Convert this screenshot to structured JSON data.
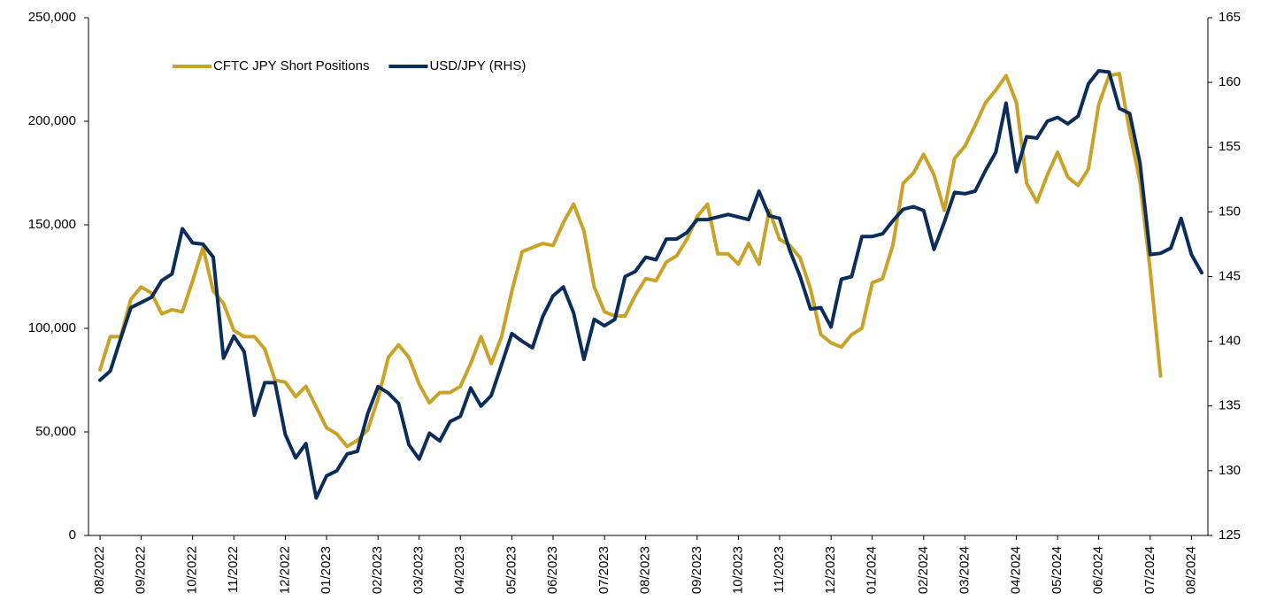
{
  "chart_data": {
    "type": "line",
    "categories": [
      "08/2022",
      null,
      null,
      null,
      "09/2022",
      null,
      null,
      null,
      null,
      "10/2022",
      null,
      null,
      null,
      "11/2022",
      null,
      null,
      null,
      null,
      "12/2022",
      null,
      null,
      null,
      "01/2023",
      null,
      null,
      null,
      null,
      "02/2023",
      null,
      null,
      null,
      "03/2023",
      null,
      null,
      null,
      "04/2023",
      null,
      null,
      null,
      null,
      "05/2023",
      null,
      null,
      null,
      "06/2023",
      null,
      null,
      null,
      null,
      "07/2023",
      null,
      null,
      null,
      "08/2023",
      null,
      null,
      null,
      null,
      "09/2023",
      null,
      null,
      null,
      "10/2023",
      null,
      null,
      null,
      "11/2023",
      null,
      null,
      null,
      null,
      "12/2023",
      null,
      null,
      null,
      "01/2024",
      null,
      null,
      null,
      null,
      "02/2024",
      null,
      null,
      null,
      "03/2024",
      null,
      null,
      null,
      null,
      "04/2024",
      null,
      null,
      null,
      "05/2024",
      null,
      null,
      null,
      "06/2024",
      null,
      null,
      null,
      null,
      "07/2024",
      null,
      null,
      null,
      "08/2024",
      null
    ],
    "series": [
      {
        "name": "CFTC JPY Short Positions",
        "color": "#C9A227",
        "axis": "y",
        "values": [
          80000,
          96000,
          96000,
          114000,
          120000,
          117000,
          107000,
          109000,
          108000,
          123000,
          139000,
          118000,
          112000,
          99000,
          96000,
          96000,
          90000,
          75000,
          74000,
          67000,
          72000,
          62000,
          52000,
          49000,
          43000,
          46000,
          51000,
          66000,
          86000,
          92000,
          86000,
          73000,
          64000,
          69000,
          69000,
          72000,
          83000,
          96000,
          83000,
          96000,
          118000,
          137000,
          139000,
          141000,
          140000,
          151000,
          160000,
          147000,
          120000,
          108000,
          106000,
          106000,
          116000,
          124000,
          123000,
          132000,
          135000,
          143000,
          154000,
          160000,
          136000,
          136000,
          131000,
          141000,
          131000,
          157000,
          143000,
          140000,
          134000,
          119000,
          97000,
          93000,
          91000,
          97000,
          100000,
          122000,
          124000,
          140000,
          170000,
          175000,
          184000,
          174000,
          157000,
          182000,
          188000,
          198000,
          209000,
          215000,
          222000,
          209000,
          170000,
          161000,
          174000,
          185000,
          173000,
          169000,
          177000,
          208000,
          222000,
          223000,
          195000,
          171000,
          128000,
          77000,
          null,
          null,
          null,
          null
        ]
      },
      {
        "name": "USD/JPY (RHS)",
        "color": "#0B2D5B",
        "axis": "y2",
        "values": [
          137.0,
          137.7,
          140.2,
          142.6,
          143.0,
          143.4,
          144.7,
          145.2,
          148.7,
          147.6,
          147.5,
          146.5,
          138.7,
          140.4,
          139.2,
          134.3,
          136.8,
          136.8,
          132.8,
          131.0,
          132.1,
          127.9,
          129.6,
          130.0,
          131.3,
          131.5,
          134.4,
          136.5,
          136.0,
          135.2,
          132.0,
          130.9,
          132.9,
          132.3,
          133.8,
          134.2,
          136.4,
          135.0,
          135.8,
          138.2,
          140.6,
          140.0,
          139.5,
          141.9,
          143.5,
          144.2,
          142.2,
          138.6,
          141.7,
          141.2,
          141.7,
          145.0,
          145.4,
          146.5,
          146.3,
          147.9,
          147.9,
          148.4,
          149.4,
          149.4,
          149.6,
          149.8,
          149.6,
          149.4,
          151.6,
          149.7,
          149.5,
          147.0,
          145.0,
          142.5,
          142.6,
          141.1,
          144.8,
          145.0,
          148.1,
          148.1,
          148.3,
          149.3,
          150.2,
          150.4,
          150.1,
          147.1,
          149.2,
          151.5,
          151.4,
          151.6,
          153.2,
          154.6,
          158.4,
          153.1,
          155.8,
          155.7,
          157.0,
          157.3,
          156.8,
          157.4,
          159.9,
          160.9,
          160.8,
          158.0,
          157.6,
          153.8,
          146.7,
          146.8,
          147.2,
          149.5,
          146.7,
          145.3
        ]
      }
    ],
    "ylim": [
      0,
      250000
    ],
    "yticks": [
      0,
      {
        "value": 50000,
        "label": "50,000"
      },
      {
        "value": 100000,
        "label": "100,000"
      },
      {
        "value": 150000,
        "label": "150,000"
      },
      {
        "value": 200000,
        "label": "200,000"
      },
      {
        "value": 250000,
        "label": "250,000"
      }
    ],
    "y2lim": [
      125,
      165
    ],
    "y2ticks": [
      125,
      130,
      135,
      140,
      145,
      150,
      155,
      160,
      165
    ],
    "grid": false,
    "legend": "upper left"
  }
}
